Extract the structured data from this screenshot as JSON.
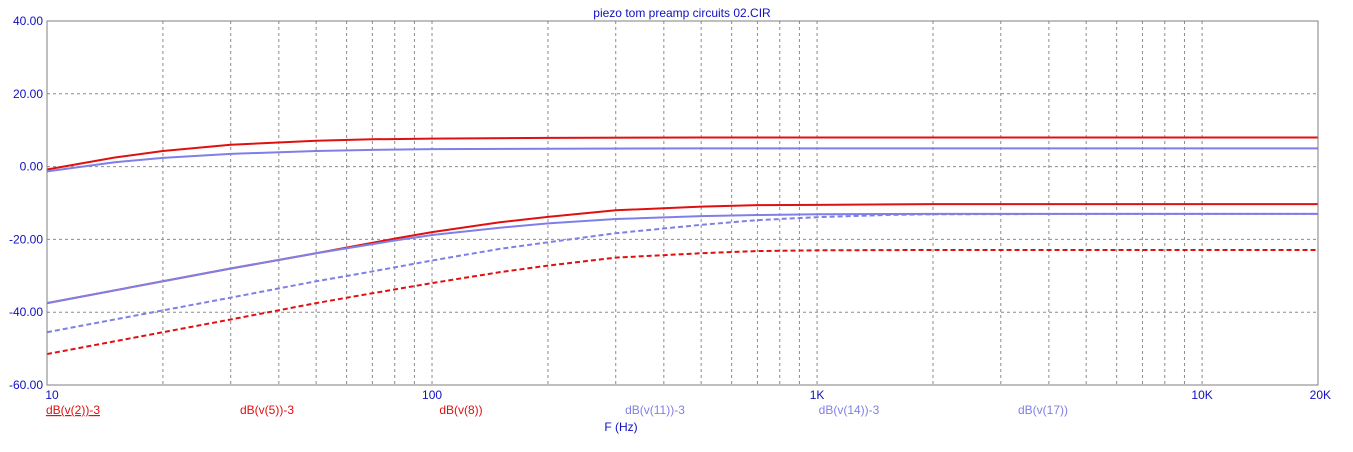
{
  "chart_data": {
    "type": "line",
    "title": "piezo tom preamp circuits 02.CIR",
    "xlabel": "F (Hz)",
    "ylabel": "",
    "xscale": "log",
    "xlim": [
      10,
      20000
    ],
    "ylim": [
      -60,
      40
    ],
    "grid": true,
    "grid_style": "dashed",
    "legend_placement": "bottom",
    "y_ticks": [
      {
        "value": 40,
        "label": "40.00"
      },
      {
        "value": 20,
        "label": "20.00"
      },
      {
        "value": 0,
        "label": "0.00"
      },
      {
        "value": -20,
        "label": "-20.00"
      },
      {
        "value": -40,
        "label": "-40.00"
      },
      {
        "value": -60,
        "label": "-60.00"
      }
    ],
    "x_ticks": [
      {
        "value": 10,
        "label": "10"
      },
      {
        "value": 100,
        "label": "100"
      },
      {
        "value": 1000,
        "label": "1K"
      },
      {
        "value": 10000,
        "label": "10K"
      },
      {
        "value": 20000,
        "label": "20K"
      }
    ],
    "series": [
      {
        "name": "dB(v(2))-3",
        "color": "#e01010",
        "dash": "solid",
        "x": [
          10,
          15,
          20,
          30,
          50,
          70,
          100,
          200,
          500,
          1000,
          2000,
          5000,
          10000,
          20000
        ],
        "y": [
          -0.8,
          2.5,
          4.3,
          6.0,
          7.1,
          7.5,
          7.7,
          7.9,
          8.0,
          8.0,
          8.0,
          8.0,
          8.0,
          8.0
        ]
      },
      {
        "name": "dB(v(5))-3",
        "color": "#e01010",
        "dash": "solid",
        "x": [
          10,
          20,
          30,
          50,
          80,
          100,
          150,
          200,
          300,
          500,
          700,
          1000,
          2000,
          5000,
          20000
        ],
        "y": [
          -37.5,
          -31.5,
          -28.0,
          -23.8,
          -19.8,
          -18.0,
          -15.3,
          -13.8,
          -12.0,
          -11.0,
          -10.6,
          -10.5,
          -10.3,
          -10.3,
          -10.3
        ]
      },
      {
        "name": "dB(v(8))",
        "color": "#e01010",
        "dash": "dashed",
        "x": [
          10,
          20,
          30,
          50,
          70,
          100,
          150,
          200,
          300,
          500,
          700,
          1000,
          2000,
          5000,
          20000
        ],
        "y": [
          -51.5,
          -45.5,
          -42.0,
          -37.5,
          -34.8,
          -32.0,
          -29.0,
          -27.2,
          -25.0,
          -23.8,
          -23.2,
          -23.0,
          -22.9,
          -22.9,
          -22.9
        ]
      },
      {
        "name": "dB(v(11))-3",
        "color": "#7f7fe8",
        "dash": "solid",
        "x": [
          10,
          15,
          20,
          30,
          50,
          70,
          100,
          200,
          500,
          1000,
          2000,
          5000,
          20000
        ],
        "y": [
          -1.3,
          1.2,
          2.4,
          3.5,
          4.3,
          4.6,
          4.8,
          4.9,
          5.0,
          5.0,
          5.0,
          5.0,
          5.0
        ]
      },
      {
        "name": "dB(v(14))-3",
        "color": "#7f7fe8",
        "dash": "solid",
        "x": [
          10,
          20,
          30,
          50,
          80,
          100,
          150,
          200,
          300,
          500,
          700,
          1000,
          2000,
          5000,
          20000
        ],
        "y": [
          -37.5,
          -31.5,
          -28.0,
          -23.8,
          -20.3,
          -18.8,
          -16.8,
          -15.6,
          -14.4,
          -13.6,
          -13.3,
          -13.1,
          -13.0,
          -13.0,
          -13.0
        ]
      },
      {
        "name": "dB(v(17))",
        "color": "#7f7fe8",
        "dash": "dashed",
        "x": [
          10,
          20,
          30,
          50,
          70,
          100,
          150,
          200,
          300,
          500,
          700,
          1000,
          1500,
          2000,
          5000,
          20000
        ],
        "y": [
          -45.5,
          -39.5,
          -36.0,
          -31.5,
          -28.8,
          -25.8,
          -22.6,
          -20.8,
          -18.3,
          -16.0,
          -14.7,
          -13.9,
          -13.3,
          -13.1,
          -13.0,
          -13.0
        ]
      }
    ]
  }
}
